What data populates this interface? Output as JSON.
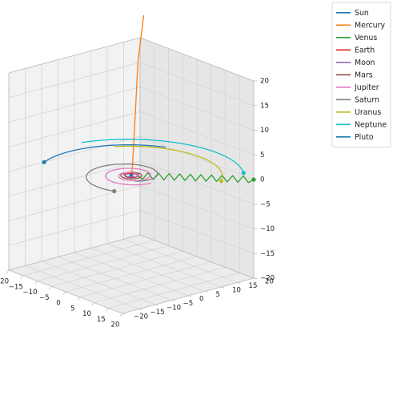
{
  "chart_data": {
    "type": "line",
    "projection": "3d",
    "title": "",
    "xlabel": "",
    "ylabel": "",
    "zlabel": "",
    "xlim": [
      -20,
      20
    ],
    "ylim": [
      -20,
      20
    ],
    "zlim": [
      -20,
      20
    ],
    "x_ticks": [
      -20,
      -15,
      -10,
      -5,
      0,
      5,
      10,
      15,
      20
    ],
    "y_ticks": [
      -20,
      -15,
      -10,
      -5,
      0,
      5,
      10,
      15,
      20
    ],
    "z_ticks": [
      -20,
      -15,
      -10,
      -5,
      0,
      5,
      10,
      15,
      20
    ],
    "grid": true,
    "legend_position": "top-right",
    "series": [
      {
        "name": "Sun",
        "color": "#1f77b4",
        "shape": "point",
        "center": [
          0,
          0
        ],
        "radius": 0,
        "z": 0
      },
      {
        "name": "Mercury",
        "color": "#ff7f0e",
        "shape": "path",
        "points": [
          [
            -21,
            22,
            24
          ],
          [
            -15,
            15,
            17
          ],
          [
            -10,
            10,
            10
          ],
          [
            -5,
            5,
            4
          ],
          [
            -3,
            3,
            1
          ],
          [
            -1,
            1,
            0
          ]
        ]
      },
      {
        "name": "Venus",
        "color": "#2ca02c",
        "shape": "zigzag",
        "marker": "end",
        "from": [
          1,
          1,
          0
        ],
        "to": [
          20,
          20,
          0
        ],
        "amplitude": 0.45,
        "zigs": 22
      },
      {
        "name": "Earth",
        "color": "#d62728",
        "shape": "orbit",
        "center": [
          0,
          0
        ],
        "radius": 1.5,
        "z": 0,
        "theta": [
          0,
          360
        ]
      },
      {
        "name": "Moon",
        "color": "#9467bd",
        "shape": "orbit",
        "center": [
          0,
          0
        ],
        "radius": 1.7,
        "z": 0.2,
        "theta": [
          0,
          360
        ]
      },
      {
        "name": "Mars",
        "color": "#8c564b",
        "shape": "orbit",
        "center": [
          0,
          0
        ],
        "radius": 2.4,
        "z": 0,
        "theta": [
          0,
          360
        ]
      },
      {
        "name": "Jupiter",
        "color": "#e377c2",
        "shape": "spiral",
        "center": [
          0,
          0
        ],
        "radius": [
          1,
          7
        ],
        "z": 0,
        "theta": [
          0,
          720
        ]
      },
      {
        "name": "Saturn",
        "color": "#7f7f7f",
        "shape": "spiral",
        "center": [
          0,
          0
        ],
        "radius": [
          4,
          12
        ],
        "z": 0,
        "theta": [
          -30,
          300
        ],
        "marker": "end"
      },
      {
        "name": "Uranus",
        "color": "#bcbd22",
        "shape": "arc",
        "center": [
          0,
          0
        ],
        "radius": 21,
        "z": 0,
        "theta": [
          40,
          150
        ],
        "marker": "start"
      },
      {
        "name": "Neptune",
        "color": "#17becf",
        "shape": "arc",
        "center": [
          0,
          0
        ],
        "radius": 26,
        "z": 0,
        "theta": [
          55,
          165
        ],
        "marker": "start"
      },
      {
        "name": "Pluto",
        "color": "#1f77b4",
        "shape": "arc",
        "center": [
          0,
          0
        ],
        "radius": 22,
        "z": 0,
        "theta": [
          118,
          205
        ],
        "marker": "end"
      }
    ]
  }
}
